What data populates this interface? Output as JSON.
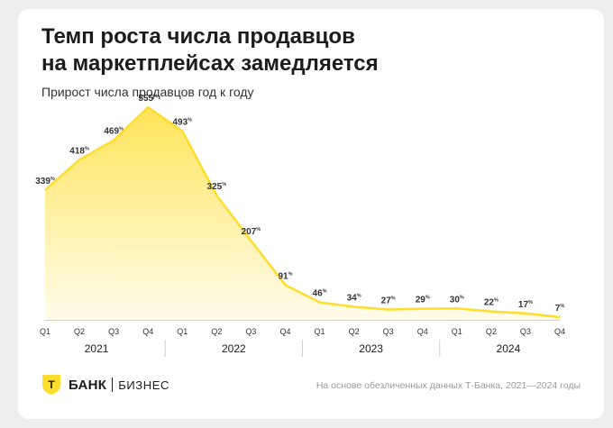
{
  "title_line1": "Темп роста числа продавцов",
  "title_line2": "на маркетплейсах замедляется",
  "subtitle": "Прирост числа продавцов год к году",
  "brand": {
    "name": "БАНК",
    "separator": "|",
    "sub": "БИЗНЕС",
    "logo_letter": "Т"
  },
  "source": "На основе обезличенных данных Т-Банка, 2021—2024 годы",
  "colors": {
    "line": "#ffdd2d",
    "area_top": "#ffe34d",
    "area_bottom": "#fffbe6",
    "text": "#1c1c1c"
  },
  "chart_data": {
    "type": "area",
    "quarters": [
      "Q1",
      "Q2",
      "Q3",
      "Q4",
      "Q1",
      "Q2",
      "Q3",
      "Q4",
      "Q1",
      "Q2",
      "Q3",
      "Q4",
      "Q1",
      "Q2",
      "Q3",
      "Q4"
    ],
    "years": [
      "2021",
      "2022",
      "2023",
      "2024"
    ],
    "values": [
      339,
      418,
      469,
      555,
      493,
      325,
      207,
      91,
      46,
      34,
      27,
      29,
      30,
      22,
      17,
      7
    ],
    "value_suffix": "%",
    "ylim": [
      0,
      600
    ],
    "grid": false,
    "legend": "none"
  }
}
